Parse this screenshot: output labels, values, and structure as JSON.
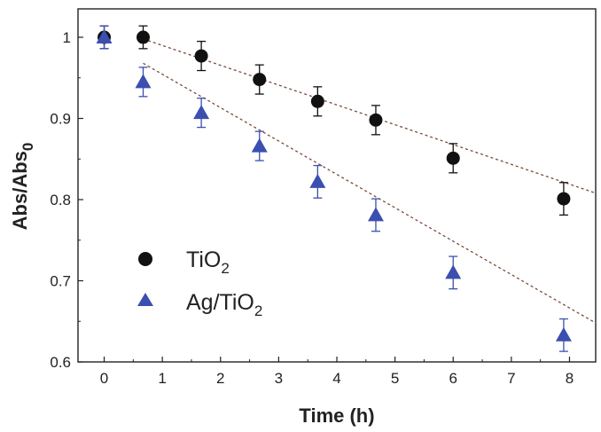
{
  "chart_data": {
    "type": "scatter",
    "xlabel": "Time (h)",
    "ylabel_main": "Abs/Abs",
    "ylabel_sub": "0",
    "xlim": [
      -0.45,
      8.45
    ],
    "ylim": [
      0.6,
      1.035
    ],
    "x_ticks": [
      0,
      1,
      2,
      3,
      4,
      5,
      6,
      7,
      8
    ],
    "y_ticks": [
      0.6,
      0.7,
      0.8,
      0.9,
      1.0
    ],
    "y_tick_labels": [
      "0.6",
      "0.7",
      "0.8",
      "0.9",
      "1"
    ],
    "grid": false,
    "legend_position": "center-left",
    "series": [
      {
        "name_main": "TiO",
        "name_sub": "2",
        "marker": "circle",
        "color": "#111111",
        "x": [
          0,
          0.67,
          1.67,
          2.67,
          3.67,
          4.67,
          6.0,
          7.9
        ],
        "y": [
          1.0,
          1.0,
          0.977,
          0.948,
          0.921,
          0.898,
          0.851,
          0.801
        ],
        "err": [
          0.014,
          0.014,
          0.018,
          0.018,
          0.018,
          0.018,
          0.018,
          0.02
        ],
        "fit": [
          [
            0.67,
            0.998
          ],
          [
            8.45,
            0.808
          ]
        ]
      },
      {
        "name_main": "Ag/TiO",
        "name_sub": "2",
        "marker": "triangle",
        "color": "#3b4fb0",
        "x": [
          0,
          0.67,
          1.67,
          2.67,
          3.67,
          4.67,
          6.0,
          7.9
        ],
        "y": [
          1.0,
          0.945,
          0.907,
          0.866,
          0.822,
          0.781,
          0.71,
          0.633
        ],
        "err": [
          0.014,
          0.018,
          0.018,
          0.018,
          0.02,
          0.02,
          0.02,
          0.02
        ],
        "fit": [
          [
            0.67,
            0.968
          ],
          [
            8.45,
            0.648
          ]
        ]
      }
    ]
  }
}
